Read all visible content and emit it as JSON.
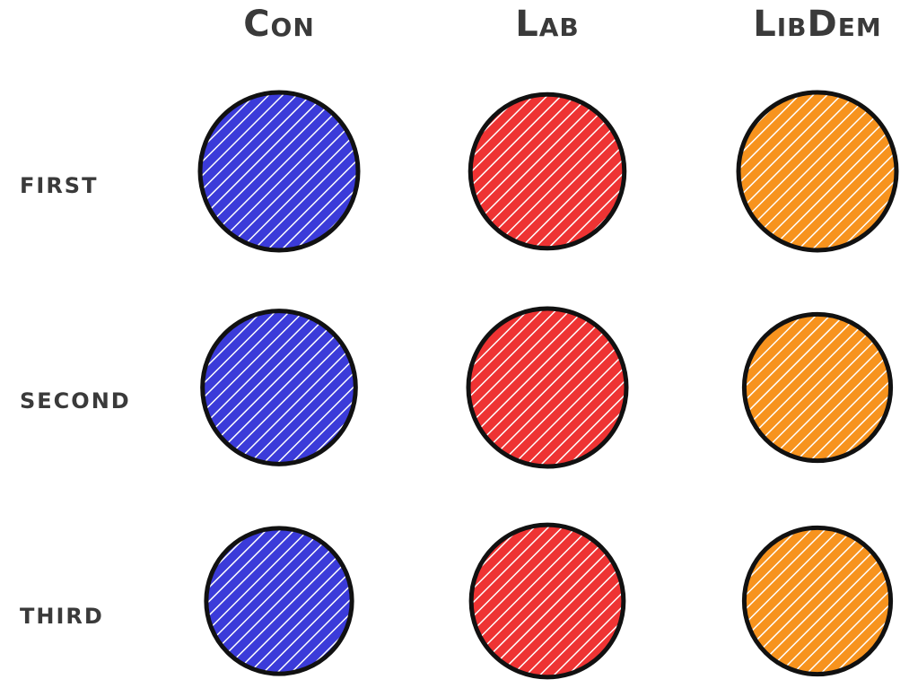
{
  "chart_data": {
    "type": "bubble-grid",
    "title": "",
    "columns": [
      "Con",
      "Lab",
      "LibDem"
    ],
    "rows": [
      "first",
      "second",
      "third"
    ],
    "colors": {
      "Con": "#3b3bd9",
      "Lab": "#ee3333",
      "LibDem": "#f7931e"
    },
    "size_scale_max": 1.0,
    "values": [
      [
        1.0,
        0.95,
        1.0
      ],
      [
        0.94,
        1.0,
        0.86
      ],
      [
        0.85,
        0.93,
        0.86
      ]
    ]
  }
}
